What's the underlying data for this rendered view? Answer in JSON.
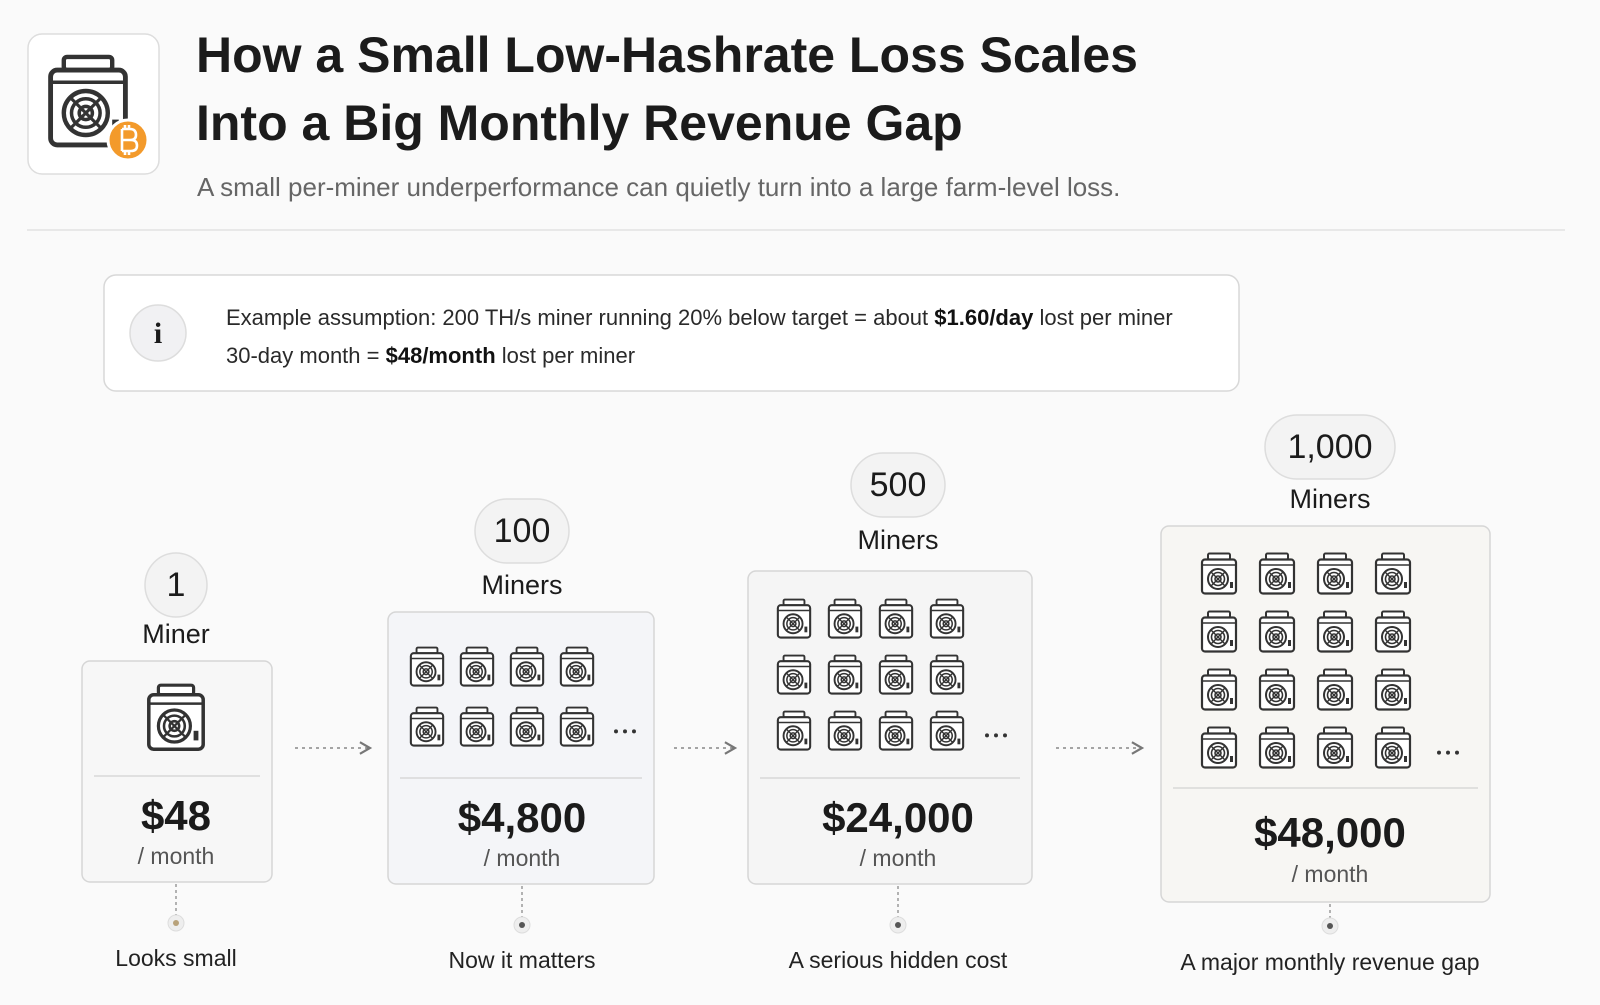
{
  "header": {
    "title_lines": [
      "How a Small Low-Hashrate Loss Scales",
      "Into a Big Monthly Revenue Gap"
    ],
    "subtitle": "A small per-miner underperformance can quietly turn into a large farm-level loss."
  },
  "info": {
    "icon": "i",
    "lines": [
      [
        {
          "text": "Example assumption: 200 TH/s miner running 20% below target = about ",
          "bold": false
        },
        {
          "text": "$1.60/day",
          "bold": true
        },
        {
          "text": " lost per miner",
          "bold": false
        }
      ],
      [
        {
          "text": "30-day month = ",
          "bold": false
        },
        {
          "text": "$48/month",
          "bold": true
        },
        {
          "text": " lost per miner",
          "bold": false
        }
      ]
    ]
  },
  "stages": [
    {
      "count": "1",
      "unit": "Miner",
      "amount": "$48",
      "per": "/ month",
      "caption": "Looks small"
    },
    {
      "count": "100",
      "unit": "Miners",
      "amount": "$4,800",
      "per": "/ month",
      "caption": "Now it matters"
    },
    {
      "count": "500",
      "unit": "Miners",
      "amount": "$24,000",
      "per": "/ month",
      "caption": "A serious hidden cost"
    },
    {
      "count": "1,000",
      "unit": "Miners",
      "amount": "$48,000",
      "per": "/ month",
      "caption": "A major monthly revenue gap"
    }
  ]
}
